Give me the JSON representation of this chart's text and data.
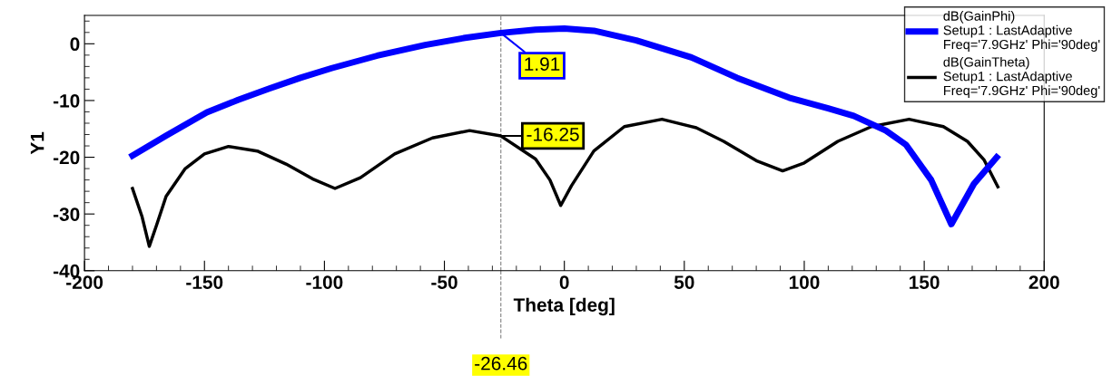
{
  "chart_data": {
    "type": "line",
    "xlabel": "Theta [deg]",
    "ylabel": "Y1",
    "xlim": [
      -200,
      200
    ],
    "xticks": [
      -200,
      -150,
      -100,
      -50,
      0,
      50,
      100,
      150,
      200
    ],
    "ylim": [
      -40,
      5
    ],
    "yticks": [
      -40,
      -30,
      -20,
      -10,
      0
    ],
    "grid": false,
    "legend": "top right",
    "series": [
      {
        "name": "dB(GainPhi)\nSetup1 : LastAdaptive\nFreq='7.9GHz' Phi='90deg'",
        "color": "#0000ff",
        "x": [
          -180,
          -166,
          -149,
          -136,
          -123,
          -110,
          -97,
          -78,
          -58,
          -42,
          -26.46,
          -12,
          0,
          12.3,
          30,
          53,
          72,
          93.7,
          110,
          120.6,
          134,
          142.4,
          152.9,
          161.3,
          170.7,
          180.2
        ],
        "values": [
          -19.7,
          -16.2,
          -12.1,
          -9.9,
          -7.9,
          -6.0,
          -4.3,
          -2.1,
          -0.2,
          1.0,
          1.91,
          2.5,
          2.7,
          2.3,
          0.6,
          -2.4,
          -6.0,
          -9.5,
          -11.4,
          -12.7,
          -15.3,
          -17.8,
          -24.0,
          -31.8,
          -24.7,
          -20.0
        ]
      },
      {
        "name": "dB(GainTheta)\nSetup1 : LastAdaptive\nFreq='7.9GHz' Phi='90deg'",
        "color": "#000000",
        "x": [
          -180,
          -176,
          -173,
          -170,
          -166,
          -158,
          -150,
          -140,
          -128,
          -116,
          -105,
          -95.6,
          -85,
          -70.7,
          -55,
          -39.5,
          -26.46,
          -12,
          -6,
          -1.5,
          3,
          12.3,
          25,
          40.7,
          55,
          66.4,
          80,
          91,
          100,
          114,
          128,
          143.7,
          158,
          168,
          175,
          180.7
        ],
        "values": [
          -25.5,
          -30.5,
          -35.7,
          -32.0,
          -26.9,
          -22.0,
          -19.4,
          -18.1,
          -18.9,
          -21.2,
          -23.8,
          -25.5,
          -23.6,
          -19.4,
          -16.6,
          -15.3,
          -16.25,
          -20.3,
          -24.0,
          -28.5,
          -25.0,
          -18.9,
          -14.6,
          -13.3,
          -14.8,
          -17.2,
          -20.6,
          -22.4,
          -21.0,
          -17.2,
          -14.6,
          -13.3,
          -14.6,
          -17.2,
          -20.5,
          -25.2
        ]
      }
    ],
    "ref_lines": [
      {
        "axis": "x",
        "value": -26.46,
        "label": "-26.46",
        "color": "#808080",
        "line_style": "dashed"
      }
    ],
    "annotations": [
      {
        "text": "1.91",
        "x": -26.46,
        "y": 1.91
      },
      {
        "text": "-16.25",
        "x": -26.46,
        "y": -16.25
      }
    ]
  }
}
